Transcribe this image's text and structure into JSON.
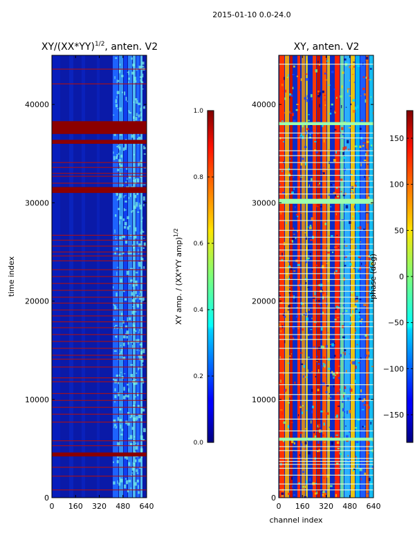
{
  "figure": {
    "suptitle": "2015-01-10 0.0-24.0"
  },
  "chart_data": [
    {
      "type": "heatmap",
      "title_main": "XY/(XX*YY)",
      "title_sup": "1/2",
      "title_tail": ", anten. V2",
      "xlabel": "",
      "ylabel": "time index",
      "xlim": [
        0,
        640
      ],
      "ylim": [
        0,
        45000
      ],
      "xticks": [
        0,
        160,
        320,
        480,
        640
      ],
      "yticks": [
        0,
        10000,
        20000,
        30000,
        40000
      ],
      "colorbar": {
        "label": "XY amp. / (XX*YY amp)",
        "label_sup": "1/2",
        "range": [
          0.0,
          1.0
        ],
        "ticks": [
          "0.0",
          "0.2",
          "0.4",
          "0.6",
          "0.8",
          "1.0"
        ]
      },
      "flagged_bands": [
        [
          4200,
          4600
        ],
        [
          31000,
          31600
        ],
        [
          36000,
          36400
        ],
        [
          37000,
          38300
        ]
      ],
      "flagged_lines": [
        800,
        2200,
        3100,
        5300,
        5800,
        7700,
        8500,
        9200,
        9900,
        10600,
        11800,
        12200,
        13300,
        14100,
        14500,
        15200,
        15900,
        16600,
        17300,
        17900,
        18500,
        19100,
        19800,
        20400,
        21100,
        21800,
        22500,
        23200,
        24100,
        24600,
        25000,
        25600,
        26200,
        26700,
        32000,
        32700,
        33000,
        33600,
        34100,
        42100,
        43600
      ]
    },
    {
      "type": "heatmap",
      "title": "XY, anten. V2",
      "xlabel": "channel index",
      "ylabel": "",
      "xlim": [
        0,
        640
      ],
      "ylim": [
        0,
        45000
      ],
      "xticks": [
        0,
        160,
        320,
        480,
        640
      ],
      "yticks": [
        0,
        10000,
        20000,
        30000,
        40000
      ],
      "colorbar": {
        "label": "phase (deg)",
        "range": [
          -180,
          180
        ],
        "ticks": [
          "−150",
          "−100",
          "−50",
          "0",
          "50",
          "100",
          "150"
        ]
      },
      "flagged_bands": [
        [
          5800,
          6100
        ],
        [
          29900,
          30400
        ],
        [
          37900,
          38200
        ]
      ],
      "flagged_lines": [
        800,
        1400,
        2300,
        3000,
        3400,
        3700,
        4000,
        4800,
        5200,
        6800,
        8000,
        9900,
        10500,
        11500,
        12700,
        14100,
        15200,
        16100,
        16600,
        17400,
        17900,
        18700,
        19300,
        19800,
        20400,
        21000,
        21600,
        22200,
        22800,
        23400,
        24100,
        24600,
        25200,
        25800,
        26500,
        27200,
        28200,
        29100,
        30900,
        31600,
        32200,
        32800,
        33400,
        34100,
        34800,
        35300,
        36600,
        37100,
        44100
      ]
    }
  ]
}
